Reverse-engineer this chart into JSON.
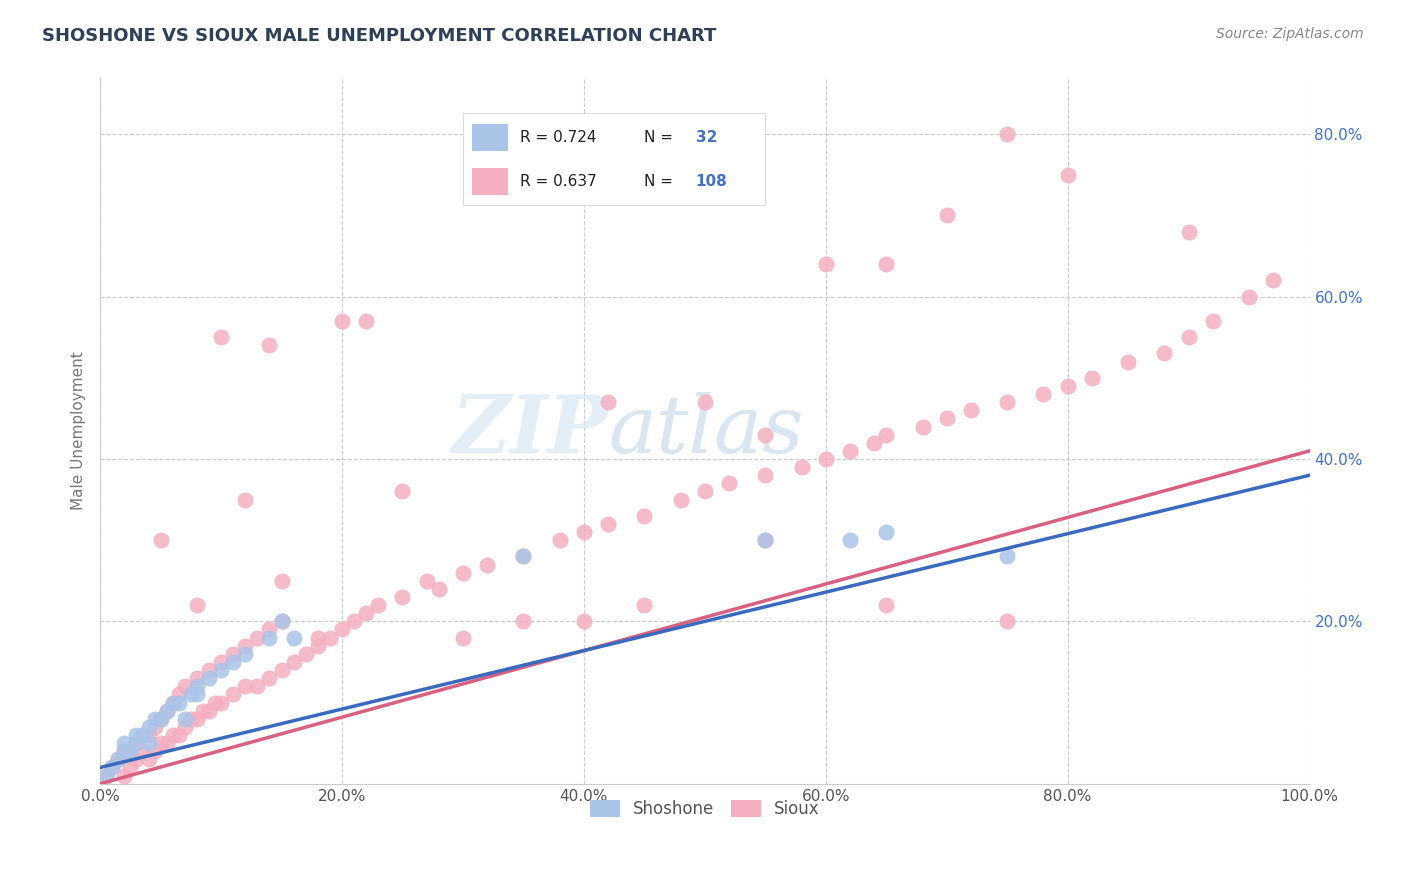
{
  "title": "SHOSHONE VS SIOUX MALE UNEMPLOYMENT CORRELATION CHART",
  "source_text": "Source: ZipAtlas.com",
  "ylabel": "Male Unemployment",
  "xlim": [
    0.0,
    1.0
  ],
  "ylim": [
    0.0,
    0.87
  ],
  "xticks": [
    0.0,
    0.2,
    0.4,
    0.6,
    0.8,
    1.0
  ],
  "xticklabels": [
    "0.0%",
    "20.0%",
    "40.0%",
    "60.0%",
    "80.0%",
    "100.0%"
  ],
  "yticks": [
    0.2,
    0.4,
    0.6,
    0.8
  ],
  "yticklabels": [
    "20.0%",
    "40.0%",
    "60.0%",
    "80.0%"
  ],
  "shoshone_color": "#aac4e8",
  "sioux_color": "#f4afc0",
  "shoshone_line_color": "#3a6abf",
  "sioux_line_color": "#d96080",
  "shoshone_R": 0.724,
  "shoshone_N": 32,
  "sioux_R": 0.637,
  "sioux_N": 108,
  "legend_label1": "Shoshone",
  "legend_label2": "Sioux",
  "background_color": "#ffffff",
  "grid_color": "#cccccc",
  "watermark_zip_color": "#d0dff0",
  "watermark_atlas_color": "#b8cce0",
  "title_color": "#2e4057",
  "tick_color": "#4472c4",
  "shoshone_x": [
    0.005,
    0.01,
    0.015,
    0.02,
    0.02,
    0.025,
    0.03,
    0.03,
    0.035,
    0.04,
    0.04,
    0.045,
    0.05,
    0.055,
    0.06,
    0.065,
    0.07,
    0.075,
    0.08,
    0.08,
    0.09,
    0.1,
    0.11,
    0.12,
    0.14,
    0.15,
    0.16,
    0.35,
    0.55,
    0.62,
    0.65,
    0.75
  ],
  "shoshone_y": [
    0.01,
    0.02,
    0.03,
    0.04,
    0.05,
    0.04,
    0.05,
    0.06,
    0.06,
    0.05,
    0.07,
    0.08,
    0.08,
    0.09,
    0.1,
    0.1,
    0.08,
    0.11,
    0.12,
    0.11,
    0.13,
    0.14,
    0.15,
    0.16,
    0.18,
    0.2,
    0.18,
    0.28,
    0.3,
    0.3,
    0.31,
    0.28
  ],
  "sioux_x": [
    0.005,
    0.01,
    0.015,
    0.02,
    0.02,
    0.025,
    0.03,
    0.03,
    0.035,
    0.04,
    0.04,
    0.045,
    0.045,
    0.05,
    0.05,
    0.055,
    0.055,
    0.06,
    0.06,
    0.065,
    0.065,
    0.07,
    0.07,
    0.075,
    0.08,
    0.08,
    0.085,
    0.09,
    0.09,
    0.095,
    0.1,
    0.1,
    0.11,
    0.11,
    0.12,
    0.12,
    0.13,
    0.13,
    0.14,
    0.14,
    0.15,
    0.15,
    0.16,
    0.17,
    0.18,
    0.19,
    0.2,
    0.21,
    0.22,
    0.23,
    0.25,
    0.27,
    0.28,
    0.3,
    0.32,
    0.35,
    0.38,
    0.4,
    0.42,
    0.45,
    0.48,
    0.5,
    0.52,
    0.55,
    0.58,
    0.6,
    0.62,
    0.64,
    0.65,
    0.68,
    0.7,
    0.72,
    0.75,
    0.78,
    0.8,
    0.82,
    0.85,
    0.88,
    0.9,
    0.92,
    0.95,
    0.97,
    0.05,
    0.08,
    0.1,
    0.12,
    0.15,
    0.2,
    0.25,
    0.3,
    0.4,
    0.45,
    0.5,
    0.55,
    0.6,
    0.65,
    0.7,
    0.75,
    0.8,
    0.9,
    0.14,
    0.18,
    0.22,
    0.35,
    0.42,
    0.55,
    0.65,
    0.75
  ],
  "sioux_y": [
    0.01,
    0.02,
    0.03,
    0.01,
    0.04,
    0.02,
    0.03,
    0.05,
    0.04,
    0.03,
    0.06,
    0.04,
    0.07,
    0.05,
    0.08,
    0.05,
    0.09,
    0.06,
    0.1,
    0.06,
    0.11,
    0.07,
    0.12,
    0.08,
    0.08,
    0.13,
    0.09,
    0.09,
    0.14,
    0.1,
    0.1,
    0.15,
    0.11,
    0.16,
    0.12,
    0.17,
    0.12,
    0.18,
    0.13,
    0.19,
    0.14,
    0.2,
    0.15,
    0.16,
    0.17,
    0.18,
    0.19,
    0.2,
    0.21,
    0.22,
    0.23,
    0.25,
    0.24,
    0.26,
    0.27,
    0.28,
    0.3,
    0.31,
    0.32,
    0.33,
    0.35,
    0.36,
    0.37,
    0.38,
    0.39,
    0.4,
    0.41,
    0.42,
    0.43,
    0.44,
    0.45,
    0.46,
    0.47,
    0.48,
    0.49,
    0.5,
    0.52,
    0.53,
    0.55,
    0.57,
    0.6,
    0.62,
    0.3,
    0.22,
    0.55,
    0.35,
    0.25,
    0.57,
    0.36,
    0.18,
    0.2,
    0.22,
    0.47,
    0.43,
    0.64,
    0.64,
    0.7,
    0.8,
    0.75,
    0.68,
    0.54,
    0.18,
    0.57,
    0.2,
    0.47,
    0.3,
    0.22,
    0.2
  ]
}
